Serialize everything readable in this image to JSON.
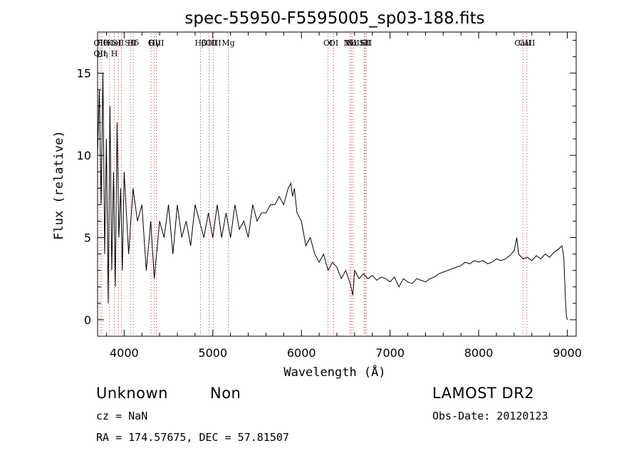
{
  "chart_data": {
    "type": "line",
    "title": "spec-55950-F5595005_sp03-188.fits",
    "xlabel": "Wavelength (Å)",
    "ylabel": "Flux (relative)",
    "xlim": [
      3700,
      9100
    ],
    "ylim": [
      -1,
      17.5
    ],
    "x_ticks": [
      4000,
      5000,
      6000,
      7000,
      8000,
      9000
    ],
    "y_ticks": [
      0,
      5,
      10,
      15
    ],
    "grid": false,
    "series": [
      {
        "x": [
          3700,
          3720,
          3740,
          3760,
          3780,
          3800,
          3820,
          3840,
          3860,
          3880,
          3900,
          3920,
          3940,
          3960,
          3980,
          4000,
          4050,
          4100,
          4150,
          4200,
          4250,
          4300,
          4340,
          4400,
          4450,
          4500,
          4550,
          4600,
          4650,
          4700,
          4750,
          4800,
          4850,
          4900,
          4950,
          5000,
          5050,
          5100,
          5150,
          5200,
          5250,
          5300,
          5350,
          5400,
          5450,
          5500,
          5550,
          5600,
          5650,
          5700,
          5750,
          5800,
          5850,
          5880,
          5900,
          5920,
          5950,
          6000,
          6050,
          6100,
          6150,
          6200,
          6250,
          6300,
          6350,
          6400,
          6450,
          6500,
          6550,
          6580,
          6600,
          6650,
          6700,
          6750,
          6800,
          6850,
          6900,
          6950,
          7000,
          7050,
          7100,
          7150,
          7200,
          7250,
          7300,
          7350,
          7400,
          7450,
          7500,
          7550,
          7600,
          7650,
          7700,
          7750,
          7800,
          7850,
          7900,
          7950,
          8000,
          8050,
          8100,
          8150,
          8200,
          8250,
          8300,
          8350,
          8400,
          8430,
          8450,
          8500,
          8550,
          8600,
          8650,
          8700,
          8750,
          8800,
          8850,
          8900,
          8940,
          8960,
          8980,
          8990,
          9000
        ],
        "y": [
          10,
          14,
          7,
          15,
          4,
          11,
          1,
          13,
          3,
          9,
          2,
          12,
          5,
          8,
          3,
          9,
          4,
          8,
          6,
          7,
          3,
          6,
          2.5,
          6,
          5,
          7,
          4,
          7,
          5,
          6,
          4.5,
          7,
          6,
          5,
          6.5,
          5,
          7,
          5,
          6.5,
          5,
          7,
          5.5,
          6,
          5,
          7,
          6,
          6.5,
          6.5,
          7,
          7,
          7.5,
          7,
          8,
          8.3,
          7.5,
          8,
          6.5,
          6,
          4.5,
          5,
          4,
          3.5,
          4,
          3,
          3.5,
          3.2,
          2.5,
          3,
          2.2,
          1.5,
          3,
          2.5,
          2.8,
          2.5,
          2.7,
          2.4,
          2.6,
          2.5,
          2.3,
          2.6,
          2,
          2.5,
          2.3,
          2.2,
          2.5,
          2.4,
          2.3,
          2.5,
          2.6,
          2.8,
          2.9,
          3,
          3.1,
          3.2,
          3.3,
          3.5,
          3.4,
          3.6,
          3.5,
          3.6,
          3.4,
          3.5,
          3.7,
          3.6,
          3.7,
          3.9,
          4.2,
          5,
          4,
          3.7,
          3.8,
          3.6,
          3.9,
          3.7,
          4,
          3.8,
          4.1,
          4.3,
          4.5,
          3.8,
          1,
          0.2,
          0
        ]
      }
    ],
    "lines": [
      {
        "x": 3727,
        "labels": [
          "OII",
          "OII"
        ]
      },
      {
        "x": 3750,
        "labels": [
          "Hθ",
          "Hη"
        ]
      },
      {
        "x": 3835,
        "labels": [
          "K"
        ]
      },
      {
        "x": 3889,
        "labels": [
          "HeI",
          "H"
        ]
      },
      {
        "x": 3934,
        "labels": [
          "SII"
        ]
      },
      {
        "x": 3969,
        "labels": []
      },
      {
        "x": 4070,
        "labels": [
          "SII"
        ]
      },
      {
        "x": 4102,
        "labels": [
          "Hδ"
        ]
      },
      {
        "x": 4304,
        "labels": [
          "G"
        ]
      },
      {
        "x": 4340,
        "labels": [
          "Hγ"
        ]
      },
      {
        "x": 4363,
        "labels": [
          "OIII"
        ]
      },
      {
        "x": 4861,
        "labels": [
          "Hβ"
        ]
      },
      {
        "x": 4959,
        "labels": [
          "OIII"
        ]
      },
      {
        "x": 5007,
        "labels": [
          "OIII"
        ]
      },
      {
        "x": 5175,
        "labels": [
          "Mg"
        ]
      },
      {
        "x": 6300,
        "labels": [
          "OI"
        ]
      },
      {
        "x": 6364,
        "labels": [
          "OI"
        ]
      },
      {
        "x": 6548,
        "labels": [
          "NII"
        ]
      },
      {
        "x": 6563,
        "labels": [
          "Hα"
        ]
      },
      {
        "x": 6583,
        "labels": [
          "NII"
        ]
      },
      {
        "x": 6708,
        "labels": [
          "Li"
        ]
      },
      {
        "x": 6716,
        "labels": [
          "SII"
        ]
      },
      {
        "x": 6731,
        "labels": [
          "SII"
        ]
      },
      {
        "x": 8498,
        "labels": [
          "CaII"
        ]
      },
      {
        "x": 8542,
        "labels": [
          "CaII"
        ]
      }
    ]
  },
  "info": {
    "class_label": "Unknown",
    "subclass_label": "Non",
    "survey_label": "LAMOST DR2",
    "cz_text": "cz = NaN",
    "obs_date_text": "Obs-Date: 20120123",
    "radec_text": "RA = 174.57675, DEC =  57.81507"
  }
}
